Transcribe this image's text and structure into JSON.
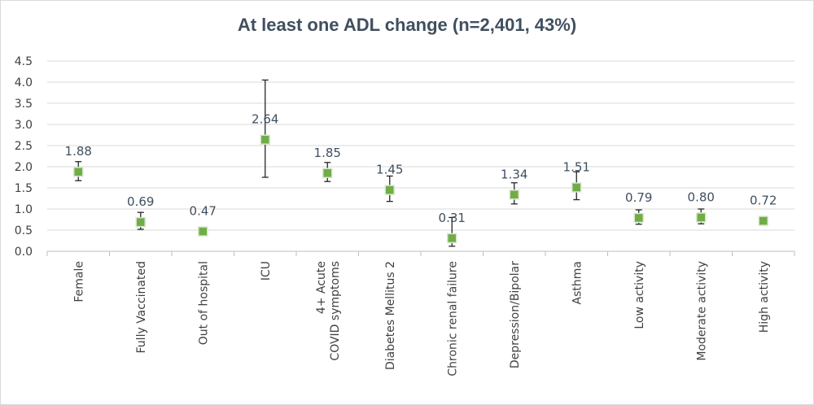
{
  "chart_data": {
    "type": "scatter",
    "title": "At least one ADL change (n=2,401, 43%)",
    "xlabel": "",
    "ylabel": "",
    "ylim": [
      0,
      4.5
    ],
    "yticks": [
      "0.0",
      "0.5",
      "1.0",
      "1.5",
      "2.0",
      "2.5",
      "3.0",
      "3.5",
      "4.0",
      "4.5"
    ],
    "grid": true,
    "categories": [
      "Female",
      "Fully Vaccinated",
      "Out of hospital",
      "ICU",
      "4+ Acute COVID symptoms",
      "Diabetes Mellitus 2",
      "Chronic renal failure",
      "Depression/Bipolar",
      "Asthma",
      "Low activity",
      "Moderate activity",
      "High activity"
    ],
    "values": [
      1.88,
      0.69,
      0.47,
      2.64,
      1.85,
      1.45,
      0.31,
      1.34,
      1.51,
      0.79,
      0.8,
      0.72
    ],
    "labels": [
      "1.88",
      "0.69",
      "0.47",
      "2.64",
      "1.85",
      "1.45",
      "0.31",
      "1.34",
      "1.51",
      "0.79",
      "0.80",
      "0.72"
    ],
    "lower": [
      1.67,
      0.52,
      0.45,
      1.75,
      1.65,
      1.18,
      0.12,
      1.12,
      1.22,
      0.64,
      0.65,
      0.7
    ],
    "upper": [
      2.12,
      0.92,
      0.49,
      4.05,
      2.1,
      1.78,
      0.8,
      1.62,
      1.88,
      0.98,
      1.0,
      0.74
    ],
    "marker_color": "#70ad47",
    "errorbar_color": "#262626",
    "grid_color": "#d9d9d9"
  }
}
